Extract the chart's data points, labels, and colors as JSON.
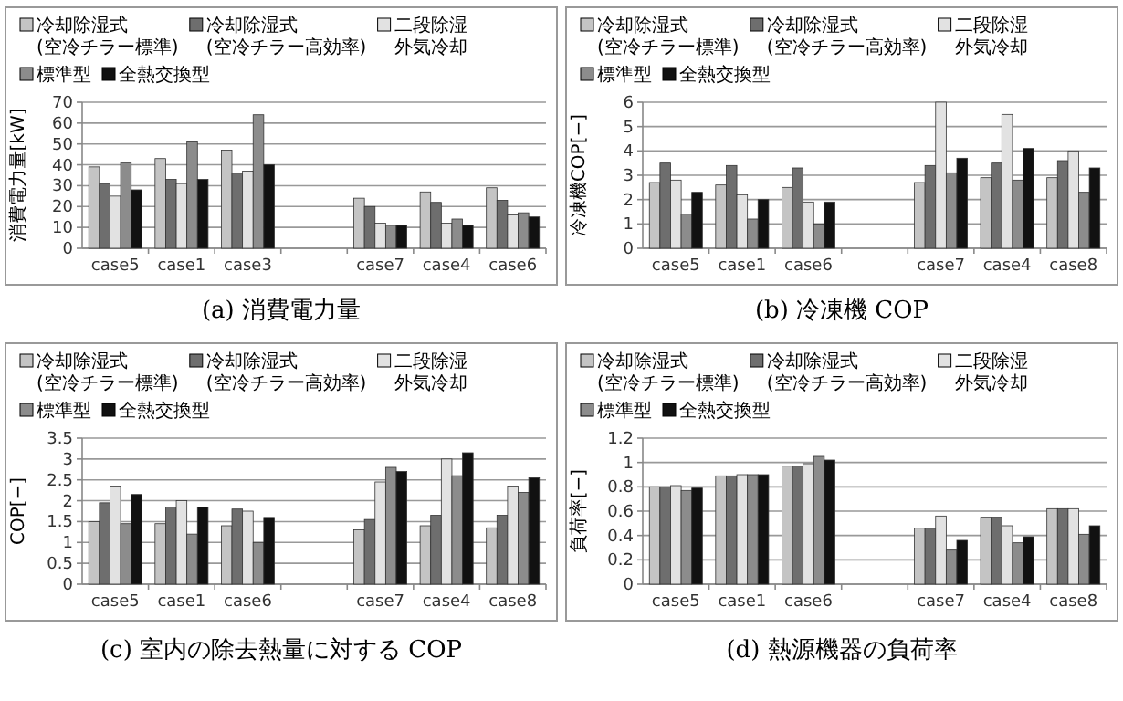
{
  "chart_data": [
    {
      "type": "bar",
      "title": "(a) 消費電力量",
      "ylabel": "消費電力量[kW]",
      "categories": [
        "case5",
        "case1",
        "case3",
        null,
        "case7",
        "case4",
        "case6"
      ],
      "ylim": [
        0,
        70
      ],
      "yticks": [
        0,
        10,
        20,
        30,
        40,
        50,
        60,
        70
      ],
      "grid": "y",
      "legend": "top",
      "series": [
        {
          "name": "冷却除湿式\n(空冷チラー標準)",
          "color": "#c4c4c4",
          "values": [
            39,
            43,
            47,
            null,
            24,
            27,
            29
          ]
        },
        {
          "name": "冷却除湿式\n(空冷チラー高効率)",
          "color": "#6e6e6e",
          "values": [
            31,
            33,
            36,
            null,
            20,
            22,
            23
          ]
        },
        {
          "name": "二段除湿外気冷却",
          "color": "#e2e2e2",
          "values": [
            25,
            31,
            37,
            null,
            12,
            12,
            16
          ]
        },
        {
          "name": "標準型",
          "color": "#8c8c8c",
          "values": [
            41,
            51,
            64,
            null,
            11,
            14,
            17
          ]
        },
        {
          "name": "全熱交換型",
          "color": "#111111",
          "values": [
            28,
            33,
            40,
            null,
            11,
            11,
            15
          ]
        }
      ]
    },
    {
      "type": "bar",
      "title": "(b) 冷凍機 COP",
      "ylabel": "冷凍機COP[−]",
      "categories": [
        "case5",
        "case1",
        "case6",
        null,
        "case7",
        "case4",
        "case8"
      ],
      "ylim": [
        0,
        6
      ],
      "yticks": [
        0,
        1,
        2,
        3,
        4,
        5,
        6
      ],
      "grid": "y",
      "legend": "top",
      "series": [
        {
          "name": "冷却除湿式\n(空冷チラー標準)",
          "color": "#c4c4c4",
          "values": [
            2.7,
            2.6,
            2.5,
            null,
            2.7,
            2.9,
            2.9
          ]
        },
        {
          "name": "冷却除湿式\n(空冷チラー高効率)",
          "color": "#6e6e6e",
          "values": [
            3.5,
            3.4,
            3.3,
            null,
            3.4,
            3.5,
            3.6
          ]
        },
        {
          "name": "二段除湿外気冷却",
          "color": "#e2e2e2",
          "values": [
            2.8,
            2.2,
            1.9,
            null,
            6,
            5.5,
            4
          ]
        },
        {
          "name": "標準型",
          "color": "#8c8c8c",
          "values": [
            1.4,
            1.2,
            1,
            null,
            3.1,
            2.8,
            2.3
          ]
        },
        {
          "name": "全熱交換型",
          "color": "#111111",
          "values": [
            2.3,
            2,
            1.9,
            null,
            3.7,
            4.1,
            3.3
          ]
        }
      ]
    },
    {
      "type": "bar",
      "title": "(c) 室内の除去熱量に対する COP",
      "ylabel": "COP[−]",
      "categories": [
        "case5",
        "case1",
        "case6",
        null,
        "case7",
        "case4",
        "case8"
      ],
      "ylim": [
        0,
        3.5
      ],
      "yticks": [
        0,
        0.5,
        1,
        1.5,
        2,
        2.5,
        3,
        3.5
      ],
      "grid": "y",
      "legend": "top",
      "series": [
        {
          "name": "冷却除湿式\n(空冷チラー標準)",
          "color": "#c4c4c4",
          "values": [
            1.5,
            1.45,
            1.4,
            null,
            1.3,
            1.4,
            1.35
          ]
        },
        {
          "name": "冷却除湿式\n(空冷チラー高効率)",
          "color": "#6e6e6e",
          "values": [
            1.95,
            1.85,
            1.8,
            null,
            1.55,
            1.65,
            1.65
          ]
        },
        {
          "name": "二段除湿外気冷却",
          "color": "#e2e2e2",
          "values": [
            2.35,
            2,
            1.75,
            null,
            2.45,
            3,
            2.35
          ]
        },
        {
          "name": "標準型",
          "color": "#8c8c8c",
          "values": [
            1.45,
            1.2,
            1,
            null,
            2.8,
            2.6,
            2.2
          ]
        },
        {
          "name": "全熱交換型",
          "color": "#111111",
          "values": [
            2.15,
            1.85,
            1.6,
            null,
            2.7,
            3.15,
            2.55
          ]
        }
      ]
    },
    {
      "type": "bar",
      "title": "(d) 熱源機器の負荷率",
      "ylabel": "負荷率[−]",
      "categories": [
        "case5",
        "case1",
        "case6",
        null,
        "case7",
        "case4",
        "case8"
      ],
      "ylim": [
        0,
        1.2
      ],
      "yticks": [
        0,
        0.2,
        0.4,
        0.6,
        0.8,
        1,
        1.2
      ],
      "grid": "y",
      "legend": "top",
      "series": [
        {
          "name": "冷却除湿式\n(空冷チラー標準)",
          "color": "#c4c4c4",
          "values": [
            0.8,
            0.89,
            0.97,
            null,
            0.46,
            0.55,
            0.62
          ]
        },
        {
          "name": "冷却除湿式\n(空冷チラー高効率)",
          "color": "#6e6e6e",
          "values": [
            0.8,
            0.89,
            0.97,
            null,
            0.46,
            0.55,
            0.62
          ]
        },
        {
          "name": "二段除湿外気冷却",
          "color": "#e2e2e2",
          "values": [
            0.81,
            0.9,
            0.99,
            null,
            0.56,
            0.48,
            0.62
          ]
        },
        {
          "name": "標準型",
          "color": "#8c8c8c",
          "values": [
            0.77,
            0.9,
            1.05,
            null,
            0.28,
            0.34,
            0.41
          ]
        },
        {
          "name": "全熱交換型",
          "color": "#111111",
          "values": [
            0.79,
            0.9,
            1.02,
            null,
            0.36,
            0.39,
            0.48
          ]
        }
      ]
    }
  ]
}
